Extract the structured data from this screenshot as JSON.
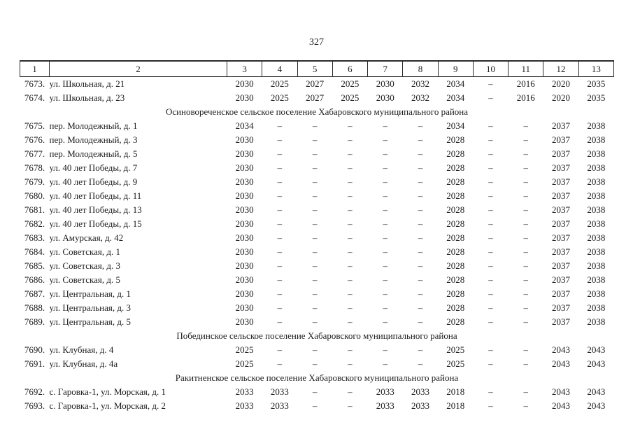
{
  "page_number": "327",
  "table": {
    "columns": [
      "1",
      "2",
      "3",
      "4",
      "5",
      "6",
      "7",
      "8",
      "9",
      "10",
      "11",
      "12",
      "13"
    ],
    "rows": [
      {
        "type": "data",
        "num": "7673.",
        "address": "ул. Школьная, д. 21",
        "values": [
          "2030",
          "2025",
          "2027",
          "2025",
          "2030",
          "2032",
          "2034",
          "–",
          "2016",
          "2020",
          "2035"
        ]
      },
      {
        "type": "data",
        "num": "7674.",
        "address": "ул. Школьная, д. 23",
        "values": [
          "2030",
          "2025",
          "2027",
          "2025",
          "2030",
          "2032",
          "2034",
          "–",
          "2016",
          "2020",
          "2035"
        ]
      },
      {
        "type": "section",
        "title": "Осиновореченское сельское поселение Хабаровского муниципального района"
      },
      {
        "type": "data",
        "num": "7675.",
        "address": "пер. Молодежный, д. 1",
        "values": [
          "2034",
          "–",
          "–",
          "–",
          "–",
          "–",
          "2034",
          "–",
          "–",
          "2037",
          "2038"
        ]
      },
      {
        "type": "data",
        "num": "7676.",
        "address": "пер. Молодежный, д. 3",
        "values": [
          "2030",
          "–",
          "–",
          "–",
          "–",
          "–",
          "2028",
          "–",
          "–",
          "2037",
          "2038"
        ]
      },
      {
        "type": "data",
        "num": "7677.",
        "address": "пер. Молодежный, д. 5",
        "values": [
          "2030",
          "–",
          "–",
          "–",
          "–",
          "–",
          "2028",
          "–",
          "–",
          "2037",
          "2038"
        ]
      },
      {
        "type": "data",
        "num": "7678.",
        "address": "ул. 40 лет Победы, д. 7",
        "values": [
          "2030",
          "–",
          "–",
          "–",
          "–",
          "–",
          "2028",
          "–",
          "–",
          "2037",
          "2038"
        ]
      },
      {
        "type": "data",
        "num": "7679.",
        "address": "ул. 40 лет Победы, д. 9",
        "values": [
          "2030",
          "–",
          "–",
          "–",
          "–",
          "–",
          "2028",
          "–",
          "–",
          "2037",
          "2038"
        ]
      },
      {
        "type": "data",
        "num": "7680.",
        "address": "ул. 40 лет Победы, д. 11",
        "values": [
          "2030",
          "–",
          "–",
          "–",
          "–",
          "–",
          "2028",
          "–",
          "–",
          "2037",
          "2038"
        ]
      },
      {
        "type": "data",
        "num": "7681.",
        "address": "ул. 40 лет Победы, д. 13",
        "values": [
          "2030",
          "–",
          "–",
          "–",
          "–",
          "–",
          "2028",
          "–",
          "–",
          "2037",
          "2038"
        ]
      },
      {
        "type": "data",
        "num": "7682.",
        "address": "ул. 40 лет Победы, д. 15",
        "values": [
          "2030",
          "–",
          "–",
          "–",
          "–",
          "–",
          "2028",
          "–",
          "–",
          "2037",
          "2038"
        ]
      },
      {
        "type": "data",
        "num": "7683.",
        "address": "ул. Амурская, д. 42",
        "values": [
          "2030",
          "–",
          "–",
          "–",
          "–",
          "–",
          "2028",
          "–",
          "–",
          "2037",
          "2038"
        ]
      },
      {
        "type": "data",
        "num": "7684.",
        "address": "ул. Советская, д. 1",
        "values": [
          "2030",
          "–",
          "–",
          "–",
          "–",
          "–",
          "2028",
          "–",
          "–",
          "2037",
          "2038"
        ]
      },
      {
        "type": "data",
        "num": "7685.",
        "address": "ул. Советская, д. 3",
        "values": [
          "2030",
          "–",
          "–",
          "–",
          "–",
          "–",
          "2028",
          "–",
          "–",
          "2037",
          "2038"
        ]
      },
      {
        "type": "data",
        "num": "7686.",
        "address": "ул. Советская, д. 5",
        "values": [
          "2030",
          "–",
          "–",
          "–",
          "–",
          "–",
          "2028",
          "–",
          "–",
          "2037",
          "2038"
        ]
      },
      {
        "type": "data",
        "num": "7687.",
        "address": "ул. Центральная, д. 1",
        "values": [
          "2030",
          "–",
          "–",
          "–",
          "–",
          "–",
          "2028",
          "–",
          "–",
          "2037",
          "2038"
        ]
      },
      {
        "type": "data",
        "num": "7688.",
        "address": "ул. Центральная, д. 3",
        "values": [
          "2030",
          "–",
          "–",
          "–",
          "–",
          "–",
          "2028",
          "–",
          "–",
          "2037",
          "2038"
        ]
      },
      {
        "type": "data",
        "num": "7689.",
        "address": "ул. Центральная, д. 5",
        "values": [
          "2030",
          "–",
          "–",
          "–",
          "–",
          "–",
          "2028",
          "–",
          "–",
          "2037",
          "2038"
        ]
      },
      {
        "type": "section",
        "title": "Побединское сельское поселение Хабаровского муниципального района"
      },
      {
        "type": "data",
        "num": "7690.",
        "address": "ул. Клубная, д. 4",
        "values": [
          "2025",
          "–",
          "–",
          "–",
          "–",
          "–",
          "2025",
          "–",
          "–",
          "2043",
          "2043"
        ]
      },
      {
        "type": "data",
        "num": "7691.",
        "address": "ул. Клубная, д. 4а",
        "values": [
          "2025",
          "–",
          "–",
          "–",
          "–",
          "–",
          "2025",
          "–",
          "–",
          "2043",
          "2043"
        ]
      },
      {
        "type": "section",
        "title": "Ракитненское сельское поселение Хабаровского муниципального района"
      },
      {
        "type": "data",
        "num": "7692.",
        "address": "с. Гаровка-1, ул. Морская, д. 1",
        "values": [
          "2033",
          "2033",
          "–",
          "–",
          "2033",
          "2033",
          "2018",
          "–",
          "–",
          "2043",
          "2043"
        ]
      },
      {
        "type": "data",
        "num": "7693.",
        "address": "с. Гаровка-1, ул. Морская, д. 2",
        "values": [
          "2033",
          "2033",
          "–",
          "–",
          "2033",
          "2033",
          "2018",
          "–",
          "–",
          "2043",
          "2043"
        ]
      }
    ]
  }
}
